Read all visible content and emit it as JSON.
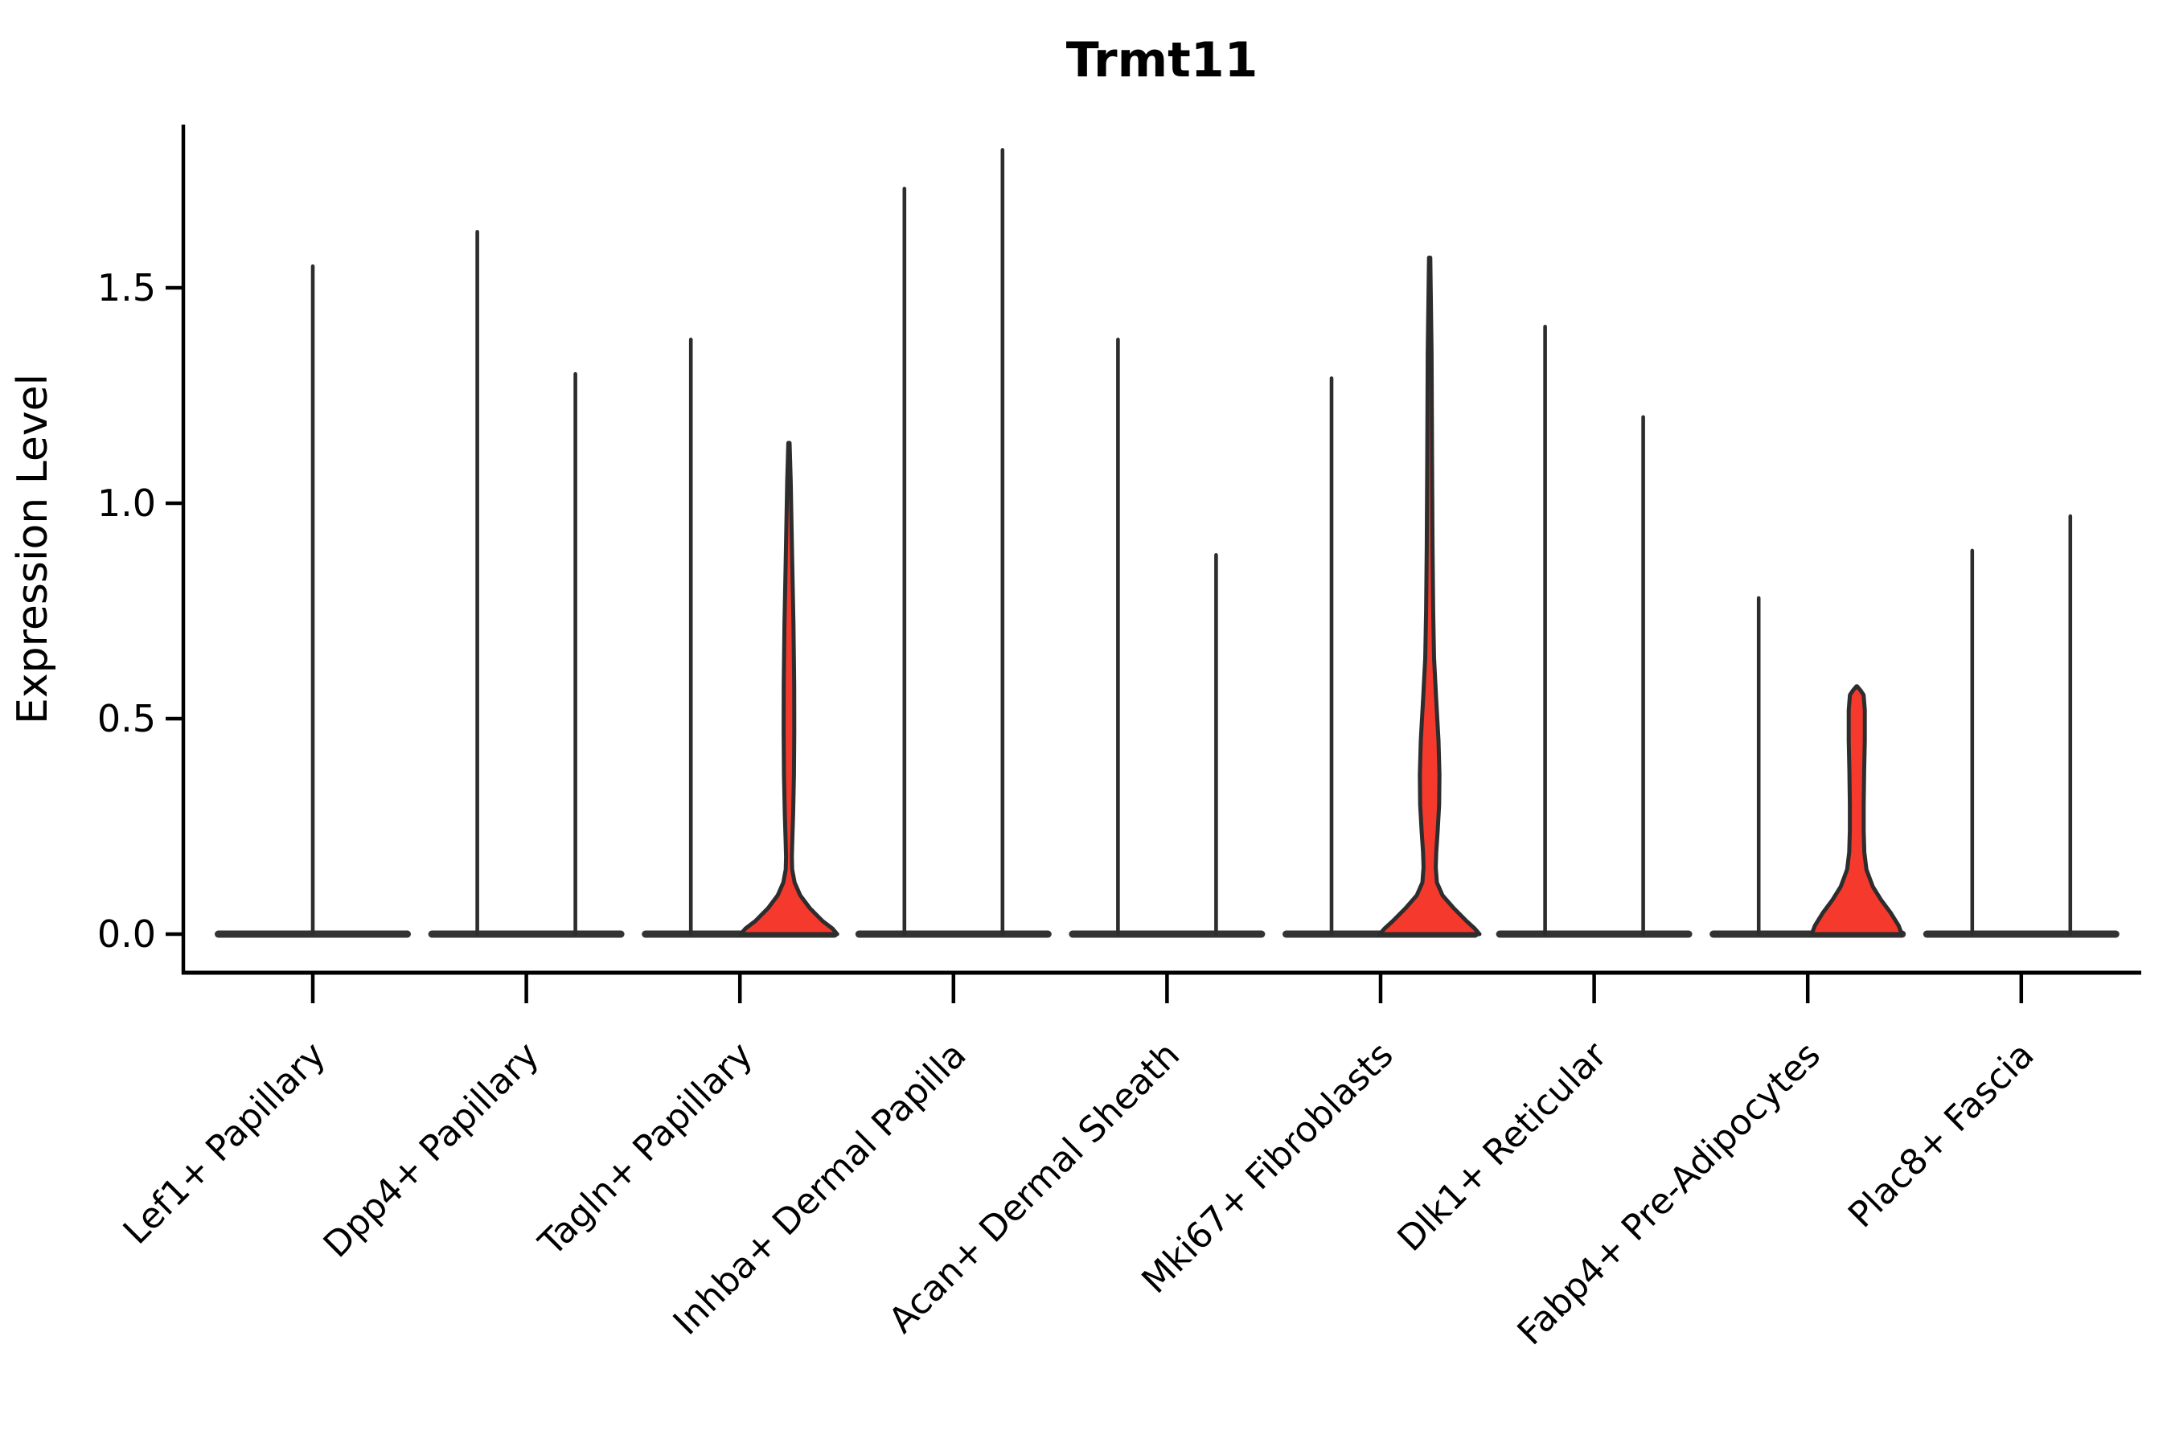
{
  "chart_data": {
    "type": "violin",
    "title": "Trmt11",
    "xlabel": "",
    "ylabel": "Expression Level",
    "ylim": [
      0,
      1.88
    ],
    "grid": false,
    "legend": "none",
    "yticks": [
      {
        "label": "0.0",
        "value": 0.0
      },
      {
        "label": "0.5",
        "value": 0.5
      },
      {
        "label": "1.0",
        "value": 1.0
      },
      {
        "label": "1.5",
        "value": 1.5
      }
    ],
    "colors": {
      "violin_fill": "#f5392d",
      "violin_outline": "#2d2d2d",
      "baseline_bar": "#333333",
      "axis": "#000000",
      "text": "#000000",
      "background": "#ffffff"
    },
    "categories": [
      {
        "label": "Lef1+ Papillary",
        "violins": [
          {
            "position": "center",
            "max": 1.55,
            "filled": false
          }
        ]
      },
      {
        "label": "Dpp4+ Papillary",
        "violins": [
          {
            "position": "left",
            "max": 1.63,
            "filled": false
          },
          {
            "position": "right",
            "max": 1.3,
            "filled": false
          }
        ]
      },
      {
        "label": "Tagln+ Papillary",
        "violins": [
          {
            "position": "left",
            "max": 1.38,
            "filled": false
          },
          {
            "position": "right",
            "max": 1.14,
            "filled": true,
            "body": "thin mid sliver with wide base",
            "profile": [
              [
                1.14,
                0.8
              ],
              [
                1.05,
                2.2
              ],
              [
                0.95,
                3.2
              ],
              [
                0.85,
                4.2
              ],
              [
                0.72,
                5.6
              ],
              [
                0.58,
                6.5
              ],
              [
                0.47,
                6.6
              ],
              [
                0.37,
                6.2
              ],
              [
                0.28,
                5.2
              ],
              [
                0.22,
                4.2
              ],
              [
                0.18,
                3.6
              ],
              [
                0.15,
                4.0
              ],
              [
                0.12,
                7.0
              ],
              [
                0.09,
                14.0
              ],
              [
                0.06,
                26.0
              ],
              [
                0.03,
                42.0
              ],
              [
                0.013,
                54.0
              ],
              [
                0.0,
                60.0
              ]
            ]
          }
        ]
      },
      {
        "label": "Inhba+ Dermal Papilla",
        "violins": [
          {
            "position": "left",
            "max": 1.73,
            "filled": false
          },
          {
            "position": "right",
            "max": 1.82,
            "filled": false
          }
        ]
      },
      {
        "label": "Acan+ Dermal Sheath",
        "violins": [
          {
            "position": "left",
            "max": 1.38,
            "filled": false
          },
          {
            "position": "right",
            "max": 0.88,
            "filled": false
          }
        ]
      },
      {
        "label": "Mki67+ Fibroblasts",
        "violins": [
          {
            "position": "left",
            "max": 1.29,
            "filled": false
          },
          {
            "position": "right",
            "max": 1.57,
            "filled": true,
            "body": "teardrop bulge low-mid with wide base",
            "profile": [
              [
                1.57,
                0.8
              ],
              [
                1.35,
                2.4
              ],
              [
                1.1,
                3.0
              ],
              [
                0.9,
                3.6
              ],
              [
                0.75,
                4.4
              ],
              [
                0.64,
                5.5
              ],
              [
                0.55,
                8.0
              ],
              [
                0.45,
                11.0
              ],
              [
                0.37,
                12.2
              ],
              [
                0.3,
                11.8
              ],
              [
                0.24,
                10.0
              ],
              [
                0.19,
                8.2
              ],
              [
                0.155,
                7.6
              ],
              [
                0.12,
                9.0
              ],
              [
                0.09,
                16.0
              ],
              [
                0.06,
                30.0
              ],
              [
                0.03,
                46.0
              ],
              [
                0.013,
                56.0
              ],
              [
                0.0,
                62.0
              ]
            ]
          }
        ]
      },
      {
        "label": "Dlk1+ Reticular",
        "violins": [
          {
            "position": "left",
            "max": 1.41,
            "filled": false
          },
          {
            "position": "right",
            "max": 1.2,
            "filled": false
          }
        ]
      },
      {
        "label": "Fabp4+ Pre-Adipocytes",
        "violins": [
          {
            "position": "left",
            "max": 0.78,
            "filled": false
          },
          {
            "position": "right",
            "max": 0.57,
            "filled": true,
            "body": "filled rounded column with wide base",
            "profile": [
              [
                0.575,
                0.5
              ],
              [
                0.565,
                5.0
              ],
              [
                0.555,
                8.5
              ],
              [
                0.52,
                10.0
              ],
              [
                0.45,
                10.0
              ],
              [
                0.38,
                9.2
              ],
              [
                0.3,
                8.6
              ],
              [
                0.24,
                8.6
              ],
              [
                0.19,
                9.4
              ],
              [
                0.15,
                12.0
              ],
              [
                0.11,
                20.0
              ],
              [
                0.08,
                30.0
              ],
              [
                0.05,
                42.0
              ],
              [
                0.02,
                52.0
              ],
              [
                0.0,
                56.0
              ]
            ]
          }
        ]
      },
      {
        "label": "Plac8+ Fascia",
        "violins": [
          {
            "position": "left",
            "max": 0.89,
            "filled": false
          },
          {
            "position": "right",
            "max": 0.97,
            "filled": false
          }
        ]
      }
    ]
  }
}
